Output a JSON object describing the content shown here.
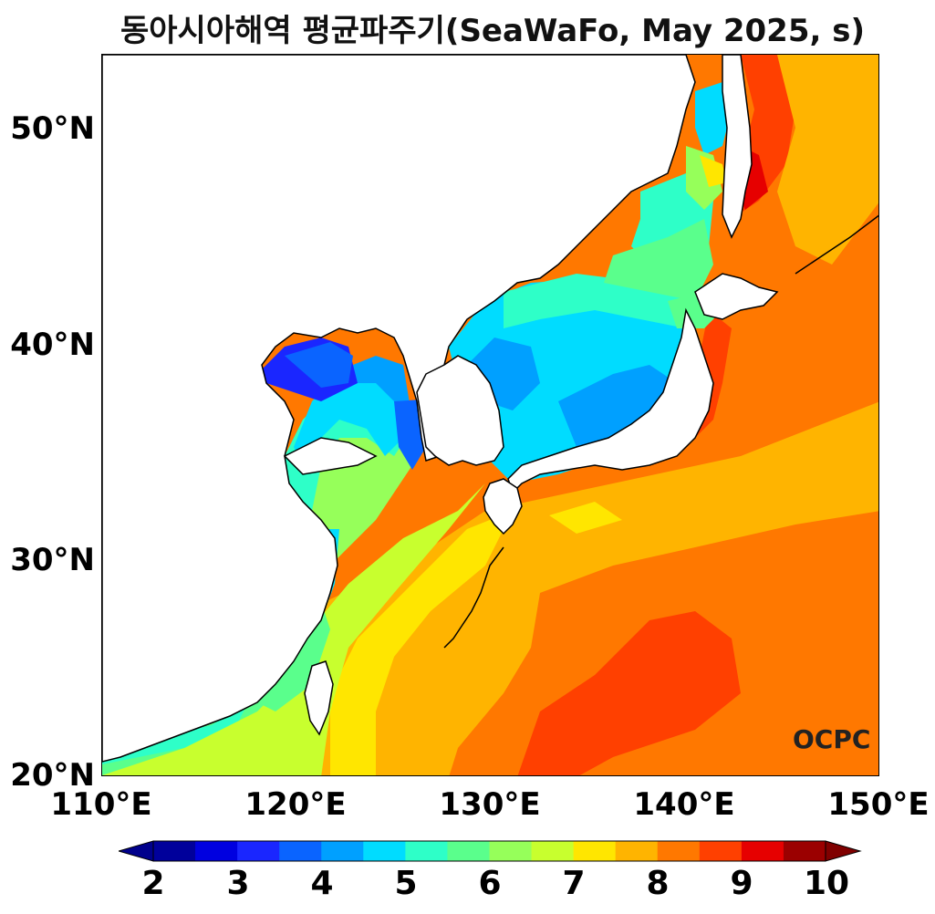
{
  "title": "동아시아해역 평균파주기(SeaWaFo, May 2025, s)",
  "logo_text": "OCPC",
  "lat_labels": [
    "50°N",
    "40°N",
    "30°N",
    "20°N"
  ],
  "lon_labels": [
    "110°E",
    "120°E",
    "130°E",
    "140°E",
    "150°E"
  ],
  "colorbar": {
    "ticks": [
      "2",
      "3",
      "4",
      "5",
      "6",
      "7",
      "8",
      "9",
      "10"
    ],
    "colors": [
      "#00009b",
      "#0000e0",
      "#1a26ff",
      "#0a64ff",
      "#00a0ff",
      "#00dcff",
      "#2effc8",
      "#5aff8c",
      "#96ff5a",
      "#c8ff2e",
      "#ffe600",
      "#ffb400",
      "#ff7800",
      "#ff4000",
      "#e60000",
      "#9b0000"
    ],
    "under_color": "#00008c",
    "over_color": "#800000"
  },
  "map_extent": {
    "lon": [
      110,
      150
    ],
    "lat": [
      20,
      53.5
    ]
  },
  "field": {
    "colors": {
      "orange_dark": "#ff7800",
      "orange": "#ffb400",
      "red_orange": "#ff4000",
      "red": "#e60000",
      "yellow": "#ffe600",
      "yellow_green": "#c8ff2e",
      "lime": "#96ff5a",
      "green": "#5aff8c",
      "aqua": "#2effc8",
      "cyan": "#00dcff",
      "sky": "#00a0ff",
      "blue": "#0a64ff",
      "deep_blue": "#1a26ff"
    }
  }
}
